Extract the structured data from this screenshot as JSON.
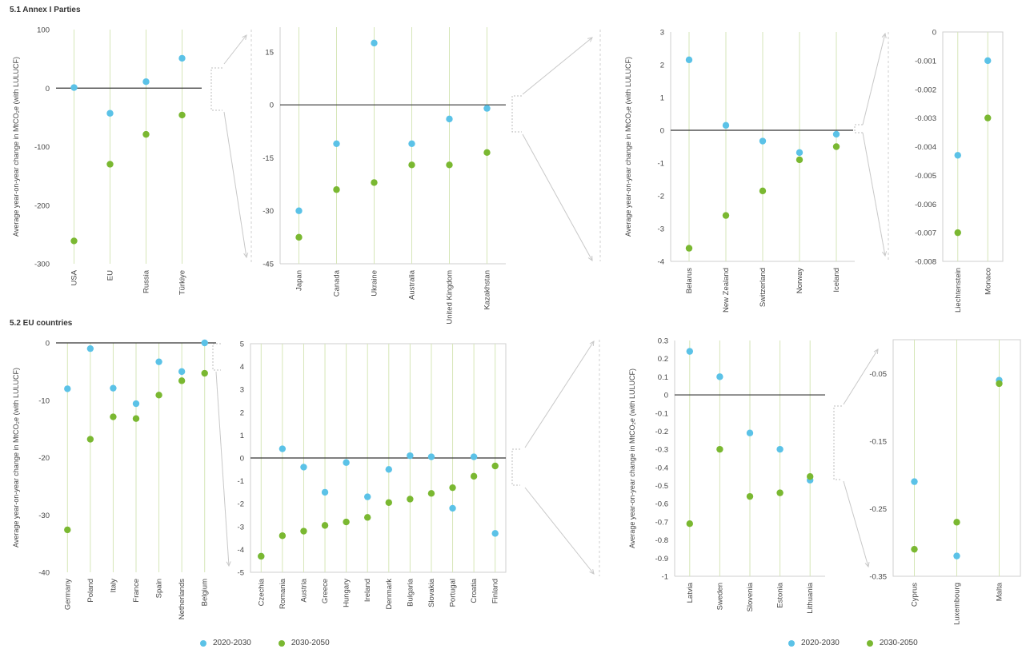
{
  "sections": [
    {
      "title": "5.1 Annex I Parties"
    },
    {
      "title": "5.2 EU countries"
    }
  ],
  "legend": [
    {
      "label": "2020-2030",
      "color": "#5bc2e7"
    },
    {
      "label": "2030-2050",
      "color": "#7ab831"
    }
  ],
  "chart_data": [
    {
      "type": "scatter",
      "ylabel": "Average year-on-year change in MtCO₂e (with LULUCF)",
      "ylim": [
        -300,
        100
      ],
      "yticks": [
        100,
        0,
        -100,
        -200,
        -300
      ],
      "categories": [
        "USA",
        "EU",
        "Russia",
        "Türkiye"
      ],
      "series": [
        {
          "name": "2020-2030",
          "values": [
            1,
            -43,
            11,
            51
          ]
        },
        {
          "name": "2030-2050",
          "values": [
            -261,
            -130,
            -79,
            -46
          ]
        }
      ]
    },
    {
      "type": "scatter",
      "ylabel": "",
      "ylim": [
        -45,
        22
      ],
      "yticks": [
        15,
        0,
        -15,
        -30,
        -45
      ],
      "categories": [
        "Japan",
        "Canada",
        "Ukraine",
        "Australia",
        "United Kingdom",
        "Kazakhstan"
      ],
      "series": [
        {
          "name": "2020-2030",
          "values": [
            -30,
            -11,
            17.5,
            -11,
            -4,
            -1
          ]
        },
        {
          "name": "2030-2050",
          "values": [
            -37.5,
            -24,
            -22,
            -17,
            -17,
            -13.5
          ]
        }
      ]
    },
    {
      "type": "scatter",
      "ylabel": "Average year-on-year change in MtCO₂e (with LULUCF)",
      "ylim": [
        -4,
        3
      ],
      "yticks": [
        3,
        2,
        1,
        0,
        -1,
        -2,
        -3,
        -4
      ],
      "categories": [
        "Belarus",
        "New Zealand",
        "Switzerland",
        "Norway",
        "Iceland"
      ],
      "series": [
        {
          "name": "2020-2030",
          "values": [
            2.15,
            0.15,
            -0.33,
            -0.68,
            -0.12
          ]
        },
        {
          "name": "2030-2050",
          "values": [
            -3.6,
            -2.6,
            -1.85,
            -0.9,
            -0.5
          ]
        }
      ]
    },
    {
      "type": "scatter",
      "ylabel": "",
      "ylim": [
        -0.008,
        0
      ],
      "yticks": [
        0,
        -0.001,
        -0.002,
        -0.003,
        -0.004,
        -0.005,
        -0.006,
        -0.007,
        -0.008
      ],
      "categories": [
        "Liechtenstein",
        "Monaco"
      ],
      "series": [
        {
          "name": "2020-2030",
          "values": [
            -0.0043,
            -0.001
          ]
        },
        {
          "name": "2030-2050",
          "values": [
            -0.007,
            -0.003
          ]
        }
      ]
    },
    {
      "type": "scatter",
      "ylabel": "Average year-on-year change in MtCO₂e (with LULUCF)",
      "ylim": [
        -40,
        0
      ],
      "yticks": [
        0,
        -10,
        -20,
        -30,
        -40
      ],
      "categories": [
        "Germany",
        "Poland",
        "Italy",
        "France",
        "Spain",
        "Netherlands",
        "Belgium"
      ],
      "series": [
        {
          "name": "2020-2030",
          "values": [
            -8,
            -1,
            -7.9,
            -10.6,
            -3.3,
            -5,
            0
          ]
        },
        {
          "name": "2030-2050",
          "values": [
            -32.6,
            -16.8,
            -12.9,
            -13.2,
            -9.1,
            -6.6,
            -5.3
          ]
        }
      ]
    },
    {
      "type": "scatter",
      "ylabel": "",
      "ylim": [
        -5,
        5
      ],
      "yticks": [
        5,
        4,
        3,
        2,
        1,
        0,
        -1,
        -2,
        -3,
        -4,
        -5
      ],
      "categories": [
        "Czechia",
        "Romania",
        "Austria",
        "Greece",
        "Hungary",
        "Ireland",
        "Denmark",
        "Bulgaria",
        "Slovakia",
        "Portugal",
        "Croatia",
        "Finland"
      ],
      "series": [
        {
          "name": "2020-2030",
          "values": [
            -4.3,
            0.4,
            -0.4,
            -1.5,
            -0.2,
            -1.7,
            -0.5,
            0.1,
            0.05,
            -2.2,
            0.05,
            -3.3
          ]
        },
        {
          "name": "2030-2050",
          "values": [
            -4.3,
            -3.4,
            -3.2,
            -2.95,
            -2.8,
            -2.6,
            -1.95,
            -1.8,
            -1.55,
            -1.3,
            -0.8,
            -0.35
          ]
        }
      ]
    },
    {
      "type": "scatter",
      "ylabel": "Average year-on-year change in MtCO₂e (with LULUCF)",
      "ylim": [
        -1,
        0.3
      ],
      "yticks": [
        0.3,
        0.2,
        0.1,
        0,
        -0.1,
        -0.2,
        -0.3,
        -0.4,
        -0.5,
        -0.6,
        -0.7,
        -0.8,
        -0.9,
        -1
      ],
      "categories": [
        "Latvia",
        "Sweden",
        "Slovenia",
        "Estonia",
        "Lithuania"
      ],
      "series": [
        {
          "name": "2020-2030",
          "values": [
            0.24,
            0.1,
            -0.21,
            -0.3,
            -0.47
          ]
        },
        {
          "name": "2030-2050",
          "values": [
            -0.71,
            -0.3,
            -0.56,
            -0.54,
            -0.45
          ]
        }
      ]
    },
    {
      "type": "scatter",
      "ylabel": "",
      "ylim": [
        -0.35,
        0
      ],
      "yticks": [
        -0.05,
        -0.15,
        -0.25,
        -0.35
      ],
      "categories": [
        "Cyprus",
        "Luxembourg",
        "Malta"
      ],
      "series": [
        {
          "name": "2020-2030",
          "values": [
            -0.21,
            -0.32,
            -0.06
          ]
        },
        {
          "name": "2030-2050",
          "values": [
            -0.31,
            -0.27,
            -0.065
          ]
        }
      ]
    }
  ]
}
